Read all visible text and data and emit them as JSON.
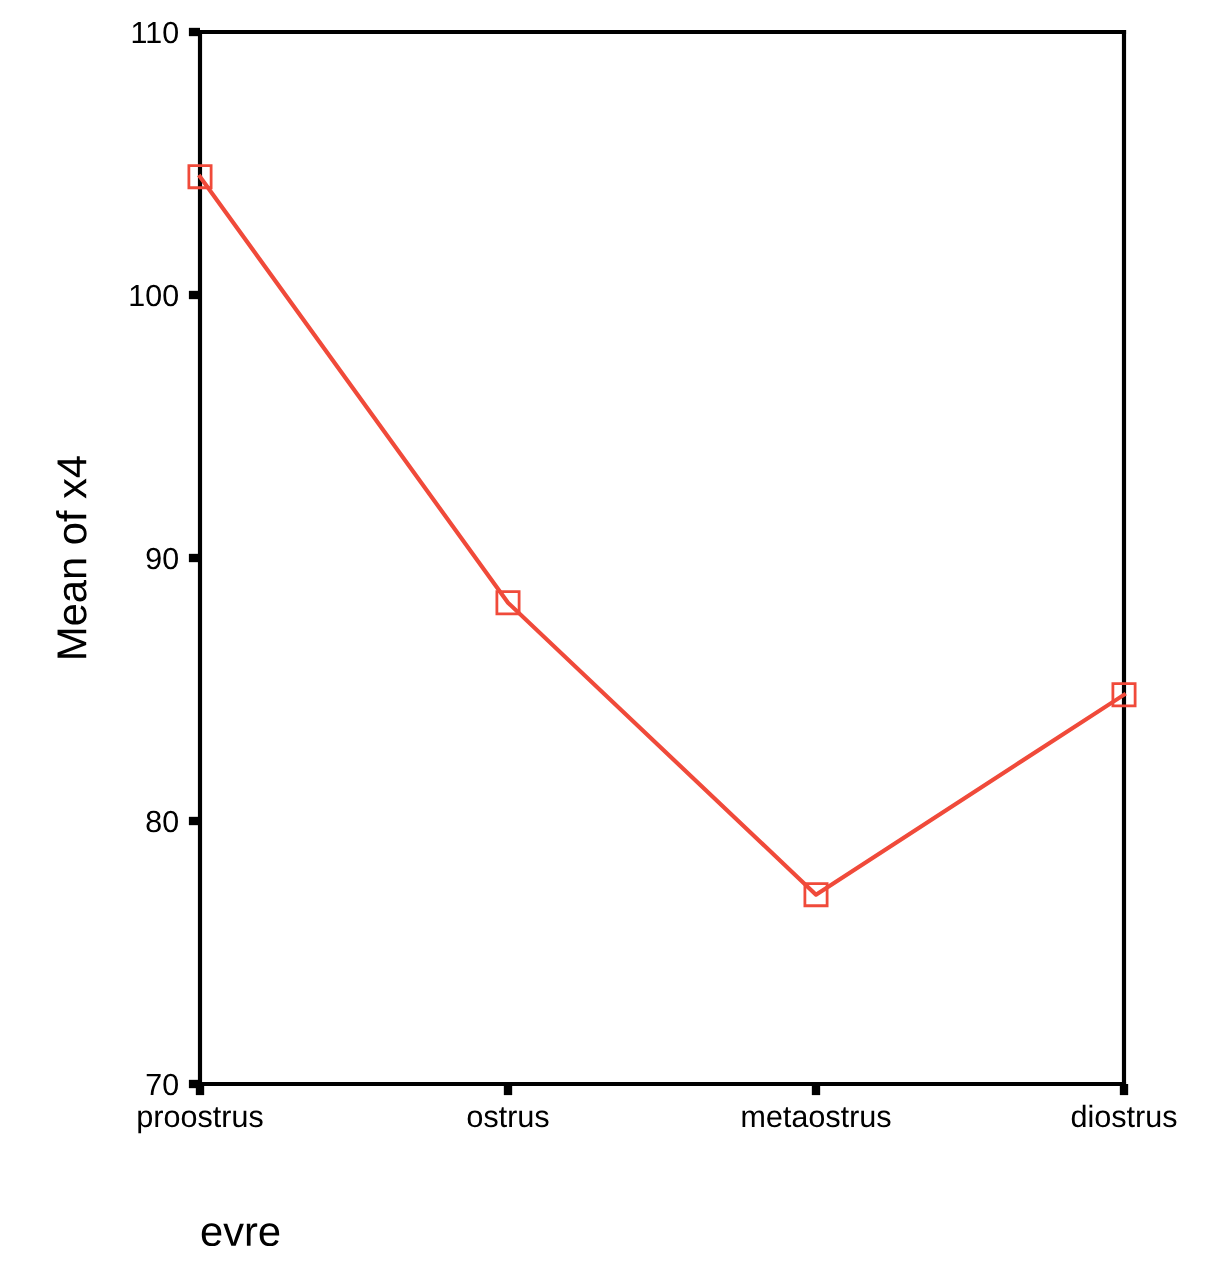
{
  "chart_data": {
    "type": "line",
    "xlabel": "evre",
    "ylabel": "Mean of x4",
    "categories": [
      "proostrus",
      "ostrus",
      "metaostrus",
      "diostrus"
    ],
    "series": [
      {
        "color": "#f04a3a",
        "values": [
          104.5,
          88.3,
          77.2,
          84.8
        ]
      }
    ],
    "ylim": [
      70,
      110
    ],
    "yticks": [
      70,
      80,
      90,
      100,
      110
    ],
    "grid": false,
    "legend": false,
    "marker": "square",
    "line_style": "solid"
  }
}
